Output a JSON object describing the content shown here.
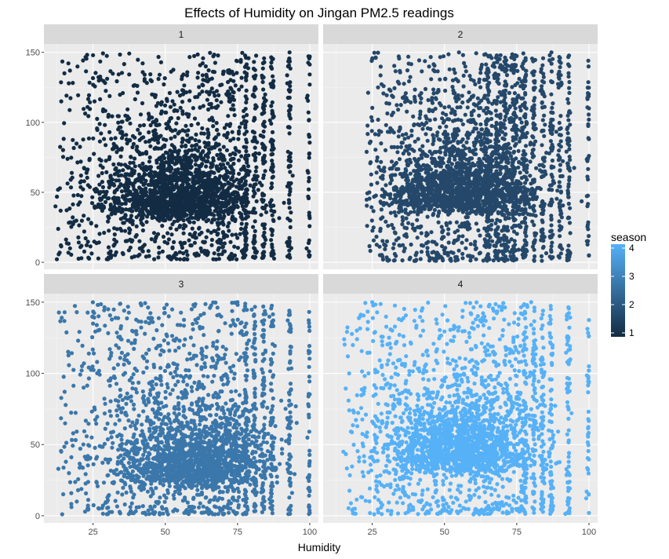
{
  "chart_data": {
    "type": "scatter",
    "title": "Effects of Humidity on Jingan PM2.5 readings",
    "xlabel": "Humidity",
    "ylabel": "",
    "xlim": [
      8,
      103
    ],
    "ylim": [
      -5,
      156
    ],
    "x_ticks": [
      25,
      50,
      75,
      100
    ],
    "y_ticks": [
      0,
      50,
      100,
      150
    ],
    "x_tick_labels": [
      "25",
      "50",
      "75",
      "100"
    ],
    "y_tick_labels": [
      "0",
      "50",
      "100",
      "150"
    ],
    "grid": true,
    "facet_variable": "season",
    "facet_labels": [
      "1",
      "2",
      "3",
      "4"
    ],
    "legend": {
      "title": "season",
      "placement": "right",
      "ticks": [
        1,
        2,
        3,
        4
      ],
      "tick_labels": [
        "1",
        "2",
        "3",
        "4"
      ],
      "low_color": "#132B43",
      "high_color": "#56B1F7"
    },
    "panels": [
      {
        "name": "1",
        "season": 1,
        "color": "#132C44",
        "x_range": [
          12,
          100
        ],
        "y_range": [
          2,
          150
        ],
        "density_center": [
          55,
          40
        ],
        "discrete_humidity_columns": [
          78,
          81,
          84,
          87,
          93,
          100
        ],
        "sample_points": [
          {
            "x": 12,
            "y": 40
          },
          {
            "x": 14,
            "y": 115
          },
          {
            "x": 17,
            "y": 137
          },
          {
            "x": 25,
            "y": 148
          },
          {
            "x": 50,
            "y": 30
          },
          {
            "x": 55,
            "y": 40
          },
          {
            "x": 65,
            "y": 60
          },
          {
            "x": 87,
            "y": 145
          },
          {
            "x": 93,
            "y": 150
          },
          {
            "x": 100,
            "y": 127
          },
          {
            "x": 100,
            "y": 5
          }
        ]
      },
      {
        "name": "2",
        "season": 2,
        "color": "#25486A",
        "x_range": [
          23,
          100
        ],
        "y_range": [
          1,
          150
        ],
        "density_center": [
          55,
          45
        ],
        "discrete_humidity_columns": [
          65,
          68,
          71,
          74,
          78,
          81,
          84,
          87,
          90,
          93,
          100
        ],
        "sample_points": [
          {
            "x": 24,
            "y": 50
          },
          {
            "x": 25,
            "y": 145
          },
          {
            "x": 27,
            "y": 125
          },
          {
            "x": 55,
            "y": 150
          },
          {
            "x": 55,
            "y": 45
          },
          {
            "x": 87,
            "y": 150
          },
          {
            "x": 100,
            "y": 88
          },
          {
            "x": 100,
            "y": 5
          }
        ]
      },
      {
        "name": "3",
        "season": 3,
        "color": "#3B77AA",
        "x_range": [
          13,
          100
        ],
        "y_range": [
          1,
          150
        ],
        "density_center": [
          60,
          30
        ],
        "discrete_humidity_columns": [
          78,
          81,
          84,
          87,
          93,
          100
        ],
        "sample_points": [
          {
            "x": 13,
            "y": 33
          },
          {
            "x": 14,
            "y": 45
          },
          {
            "x": 25,
            "y": 135
          },
          {
            "x": 60,
            "y": 30
          },
          {
            "x": 75,
            "y": 150
          },
          {
            "x": 93,
            "y": 143
          },
          {
            "x": 100,
            "y": 115
          },
          {
            "x": 100,
            "y": 2
          }
        ]
      },
      {
        "name": "4",
        "season": 4,
        "color": "#56B1F7",
        "x_range": [
          15,
          100
        ],
        "y_range": [
          1,
          150
        ],
        "density_center": [
          55,
          40
        ],
        "discrete_humidity_columns": [
          78,
          81,
          84,
          87,
          93,
          100
        ],
        "sample_points": [
          {
            "x": 15,
            "y": 45
          },
          {
            "x": 17,
            "y": 100
          },
          {
            "x": 25,
            "y": 150
          },
          {
            "x": 55,
            "y": 40
          },
          {
            "x": 80,
            "y": 150
          },
          {
            "x": 100,
            "y": 105
          },
          {
            "x": 100,
            "y": 2
          }
        ]
      }
    ]
  }
}
